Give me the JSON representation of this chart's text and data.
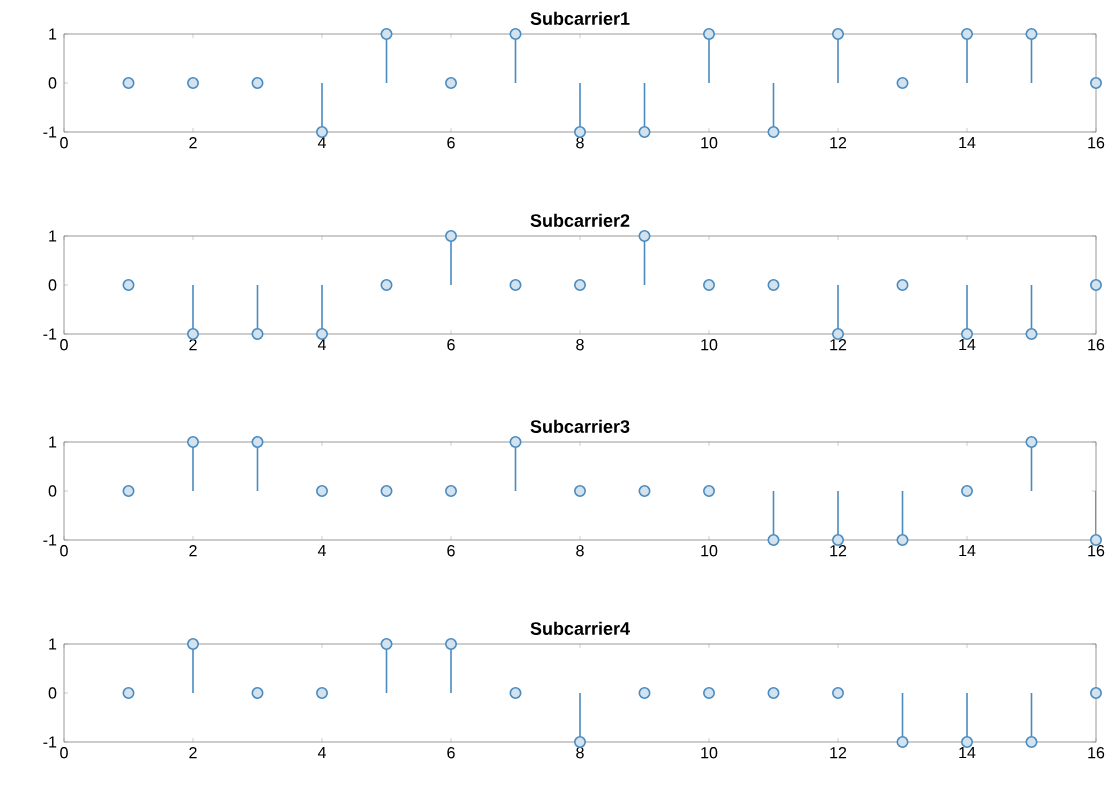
{
  "chart_data": [
    {
      "type": "lollipop",
      "title": "Subcarrier1",
      "x": [
        1,
        2,
        3,
        4,
        5,
        6,
        7,
        8,
        9,
        10,
        11,
        12,
        13,
        14,
        15,
        16
      ],
      "values": [
        0,
        0,
        0,
        -1,
        1,
        0,
        1,
        -1,
        -1,
        1,
        -1,
        1,
        0,
        1,
        1,
        0
      ],
      "color": "#4a8bbf",
      "marker": "circle",
      "xlim": [
        0,
        16
      ],
      "xticks": [
        0,
        2,
        4,
        6,
        8,
        10,
        12,
        14,
        16
      ],
      "ylim": [
        -1,
        1
      ],
      "yticks": [
        -1,
        0,
        1
      ]
    },
    {
      "type": "lollipop",
      "title": "Subcarrier2",
      "x": [
        1,
        2,
        3,
        4,
        5,
        6,
        7,
        8,
        9,
        10,
        11,
        12,
        13,
        14,
        15,
        16
      ],
      "values": [
        0,
        -1,
        -1,
        -1,
        0,
        1,
        0,
        0,
        1,
        0,
        0,
        -1,
        0,
        -1,
        -1,
        0
      ],
      "color": "#4a8bbf",
      "marker": "circle",
      "xlim": [
        0,
        16
      ],
      "xticks": [
        0,
        2,
        4,
        6,
        8,
        10,
        12,
        14,
        16
      ],
      "ylim": [
        -1,
        1
      ],
      "yticks": [
        -1,
        0,
        1
      ]
    },
    {
      "type": "lollipop",
      "title": "Subcarrier3",
      "x": [
        1,
        2,
        3,
        4,
        5,
        6,
        7,
        8,
        9,
        10,
        11,
        12,
        13,
        14,
        15,
        16
      ],
      "values": [
        0,
        1,
        1,
        0,
        0,
        0,
        1,
        0,
        0,
        0,
        -1,
        -1,
        -1,
        0,
        1,
        -1
      ],
      "color": "#4a8bbf",
      "marker": "circle",
      "xlim": [
        0,
        16
      ],
      "xticks": [
        0,
        2,
        4,
        6,
        8,
        10,
        12,
        14,
        16
      ],
      "ylim": [
        -1,
        1
      ],
      "yticks": [
        -1,
        0,
        1
      ]
    },
    {
      "type": "lollipop",
      "title": "Subcarrier4",
      "x": [
        1,
        2,
        3,
        4,
        5,
        6,
        7,
        8,
        9,
        10,
        11,
        12,
        13,
        14,
        15,
        16
      ],
      "values": [
        0,
        1,
        0,
        0,
        1,
        1,
        0,
        -1,
        0,
        0,
        0,
        0,
        -1,
        -1,
        -1,
        0
      ],
      "color": "#4a8bbf",
      "marker": "circle",
      "xlim": [
        0,
        16
      ],
      "xticks": [
        0,
        2,
        4,
        6,
        8,
        10,
        12,
        14,
        16
      ],
      "ylim": [
        -1,
        1
      ],
      "yticks": [
        -1,
        0,
        1
      ]
    }
  ]
}
